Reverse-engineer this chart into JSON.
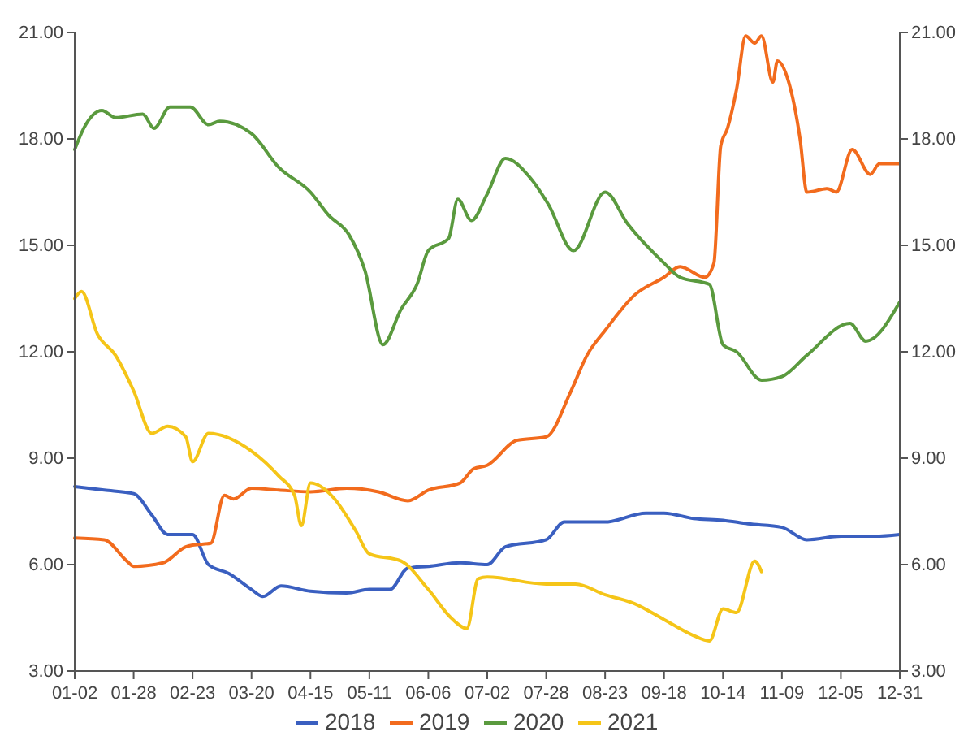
{
  "chart_data": {
    "type": "line",
    "xlim": [
      "--01-02",
      "--12-31"
    ],
    "xticks": [
      {
        "value": "--01-02",
        "label": "01-02"
      },
      {
        "value": "--01-28",
        "label": "01-28"
      },
      {
        "value": "--02-23",
        "label": "02-23"
      },
      {
        "value": "--03-20",
        "label": "03-20"
      },
      {
        "value": "--04-15",
        "label": "04-15"
      },
      {
        "value": "--05-11",
        "label": "05-11"
      },
      {
        "value": "--06-06",
        "label": "06-06"
      },
      {
        "value": "--07-02",
        "label": "07-02"
      },
      {
        "value": "--07-28",
        "label": "07-28"
      },
      {
        "value": "--08-23",
        "label": "08-23"
      },
      {
        "value": "--09-18",
        "label": "09-18"
      },
      {
        "value": "--10-14",
        "label": "10-14"
      },
      {
        "value": "--11-09",
        "label": "11-09"
      },
      {
        "value": "--12-05",
        "label": "12-05"
      },
      {
        "value": "--12-31",
        "label": "12-31"
      }
    ],
    "ylim": [
      3,
      21
    ],
    "yticks": [
      {
        "value": 3,
        "label": "3.00"
      },
      {
        "value": 6,
        "label": "6.00"
      },
      {
        "value": 9,
        "label": "9.00"
      },
      {
        "value": 12,
        "label": "12.00"
      },
      {
        "value": 15,
        "label": "15.00"
      },
      {
        "value": 18,
        "label": "18.00"
      },
      {
        "value": 21,
        "label": "21.00"
      }
    ],
    "y2lim": [
      3,
      21
    ],
    "y2ticks": [
      {
        "value": 3,
        "label": "3.00"
      },
      {
        "value": 6,
        "label": "6.00"
      },
      {
        "value": 9,
        "label": "9.00"
      },
      {
        "value": 12,
        "label": "12.00"
      },
      {
        "value": 15,
        "label": "15.00"
      },
      {
        "value": 18,
        "label": "18.00"
      },
      {
        "value": 21,
        "label": "21.00"
      }
    ],
    "grid": false,
    "legend": "bottom",
    "line_style": "solid",
    "series": [
      {
        "name": "2018",
        "color": "#3a5fc0",
        "x": [
          "--01-02",
          "--01-15",
          "--01-28",
          "--02-05",
          "--02-12",
          "--02-23",
          "--03-01",
          "--03-10",
          "--03-20",
          "--03-25",
          "--04-02",
          "--04-15",
          "--05-01",
          "--05-11",
          "--05-20",
          "--05-28",
          "--06-06",
          "--06-20",
          "--07-02",
          "--07-10",
          "--07-28",
          "--08-05",
          "--08-23",
          "--09-10",
          "--09-18",
          "--10-01",
          "--10-14",
          "--10-25",
          "--11-09",
          "--11-20",
          "--12-05",
          "--12-20",
          "--12-31"
        ],
        "values": [
          8.2,
          8.1,
          8.0,
          7.4,
          6.85,
          6.85,
          6.0,
          5.75,
          5.3,
          5.1,
          5.4,
          5.25,
          5.2,
          5.3,
          5.3,
          5.9,
          5.95,
          6.05,
          6.0,
          6.5,
          6.7,
          7.2,
          7.2,
          7.45,
          7.45,
          7.3,
          7.25,
          7.15,
          7.05,
          6.7,
          6.8,
          6.8,
          6.85
        ]
      },
      {
        "name": "2019",
        "color": "#f26b1d",
        "x": [
          "--01-02",
          "--01-15",
          "--01-25",
          "--01-28",
          "--02-10",
          "--02-20",
          "--02-23",
          "--03-02",
          "--03-08",
          "--03-12",
          "--03-20",
          "--04-01",
          "--04-15",
          "--05-01",
          "--05-15",
          "--05-28",
          "--06-06",
          "--06-20",
          "--06-26",
          "--07-02",
          "--07-15",
          "--07-28",
          "--08-08",
          "--08-15",
          "--08-23",
          "--09-05",
          "--09-18",
          "--09-25",
          "--10-06",
          "--10-10",
          "--10-13",
          "--10-16",
          "--10-20",
          "--10-24",
          "--10-28",
          "--10-31",
          "--11-05",
          "--11-07",
          "--11-12",
          "--11-17",
          "--11-20",
          "--11-29",
          "--12-03",
          "--12-10",
          "--12-18",
          "--12-22",
          "--12-31"
        ],
        "values": [
          6.75,
          6.7,
          6.1,
          5.95,
          6.05,
          6.5,
          6.55,
          6.6,
          7.95,
          7.85,
          8.15,
          8.1,
          8.05,
          8.15,
          8.05,
          7.8,
          8.1,
          8.3,
          8.7,
          8.8,
          9.5,
          9.6,
          10.9,
          11.9,
          12.6,
          13.6,
          14.1,
          14.4,
          14.1,
          14.5,
          17.8,
          18.3,
          19.4,
          20.9,
          20.7,
          20.9,
          19.6,
          20.2,
          19.6,
          18.0,
          16.5,
          16.6,
          16.5,
          17.7,
          17.0,
          17.3,
          17.3
        ]
      },
      {
        "name": "2020",
        "color": "#5a9a3e",
        "x": [
          "--01-02",
          "--01-06",
          "--01-14",
          "--01-20",
          "--02-01",
          "--02-06",
          "--02-13",
          "--02-22",
          "--03-01",
          "--03-06",
          "--03-20",
          "--04-01",
          "--04-15",
          "--04-23",
          "--05-02",
          "--05-09",
          "--05-17",
          "--05-25",
          "--06-01",
          "--06-06",
          "--06-15",
          "--06-19",
          "--06-25",
          "--07-02",
          "--07-10",
          "--07-21",
          "--07-29",
          "--08-09",
          "--08-23",
          "--09-02",
          "--09-18",
          "--09-25",
          "--10-08",
          "--10-14",
          "--10-20",
          "--10-31",
          "--11-09",
          "--11-20",
          "--12-09",
          "--12-16",
          "--12-31"
        ],
        "values": [
          17.7,
          18.3,
          18.8,
          18.6,
          18.7,
          18.3,
          18.9,
          18.9,
          18.4,
          18.5,
          18.15,
          17.2,
          16.5,
          15.85,
          15.3,
          14.3,
          12.2,
          13.2,
          13.9,
          14.85,
          15.2,
          16.3,
          15.7,
          16.45,
          17.45,
          16.9,
          16.15,
          14.85,
          16.5,
          15.6,
          14.5,
          14.1,
          13.9,
          12.2,
          12.0,
          11.2,
          11.3,
          11.9,
          12.8,
          12.3,
          13.4
        ]
      },
      {
        "name": "2021",
        "color": "#f5c518",
        "x": [
          "--01-02",
          "--01-05",
          "--01-12",
          "--01-20",
          "--01-28",
          "--02-05",
          "--02-12",
          "--02-20",
          "--02-23",
          "--03-01",
          "--03-20",
          "--04-01",
          "--04-08",
          "--04-11",
          "--04-15",
          "--04-25",
          "--05-05",
          "--05-11",
          "--05-25",
          "--06-06",
          "--06-16",
          "--06-23",
          "--06-28",
          "--07-02",
          "--07-28",
          "--08-10",
          "--08-23",
          "--09-05",
          "--09-18",
          "--10-01",
          "--10-08",
          "--10-14",
          "--10-20",
          "--10-28",
          "--10-31"
        ],
        "values": [
          13.5,
          13.7,
          12.5,
          11.9,
          10.9,
          9.7,
          9.9,
          9.6,
          8.9,
          9.7,
          9.2,
          8.5,
          7.95,
          7.1,
          8.3,
          7.9,
          6.95,
          6.3,
          6.1,
          5.3,
          4.5,
          4.2,
          5.6,
          5.65,
          5.45,
          5.45,
          5.15,
          4.9,
          4.45,
          4.0,
          3.85,
          4.75,
          4.65,
          6.1,
          5.8
        ]
      }
    ]
  }
}
